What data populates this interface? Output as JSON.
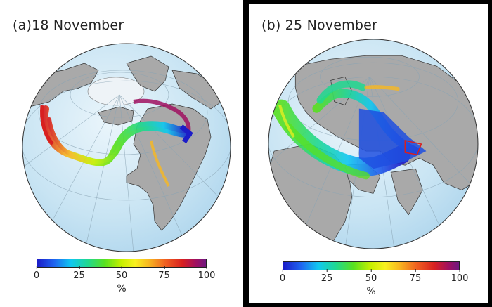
{
  "panels": [
    {
      "label": "(a)",
      "date": "18 November",
      "colorbar": {
        "ticks": [
          "0",
          "25",
          "50",
          "75",
          "100"
        ],
        "unit": "%"
      }
    },
    {
      "label": "(b)",
      "date": "25 November",
      "colorbar": {
        "ticks": [
          "0",
          "25",
          "50",
          "75",
          "100"
        ],
        "unit": "%"
      }
    }
  ],
  "colors": {
    "ocean": "#cfe7f4",
    "land": "#a9a9a9",
    "ice": "#eef3f7",
    "frame": "#000000"
  }
}
